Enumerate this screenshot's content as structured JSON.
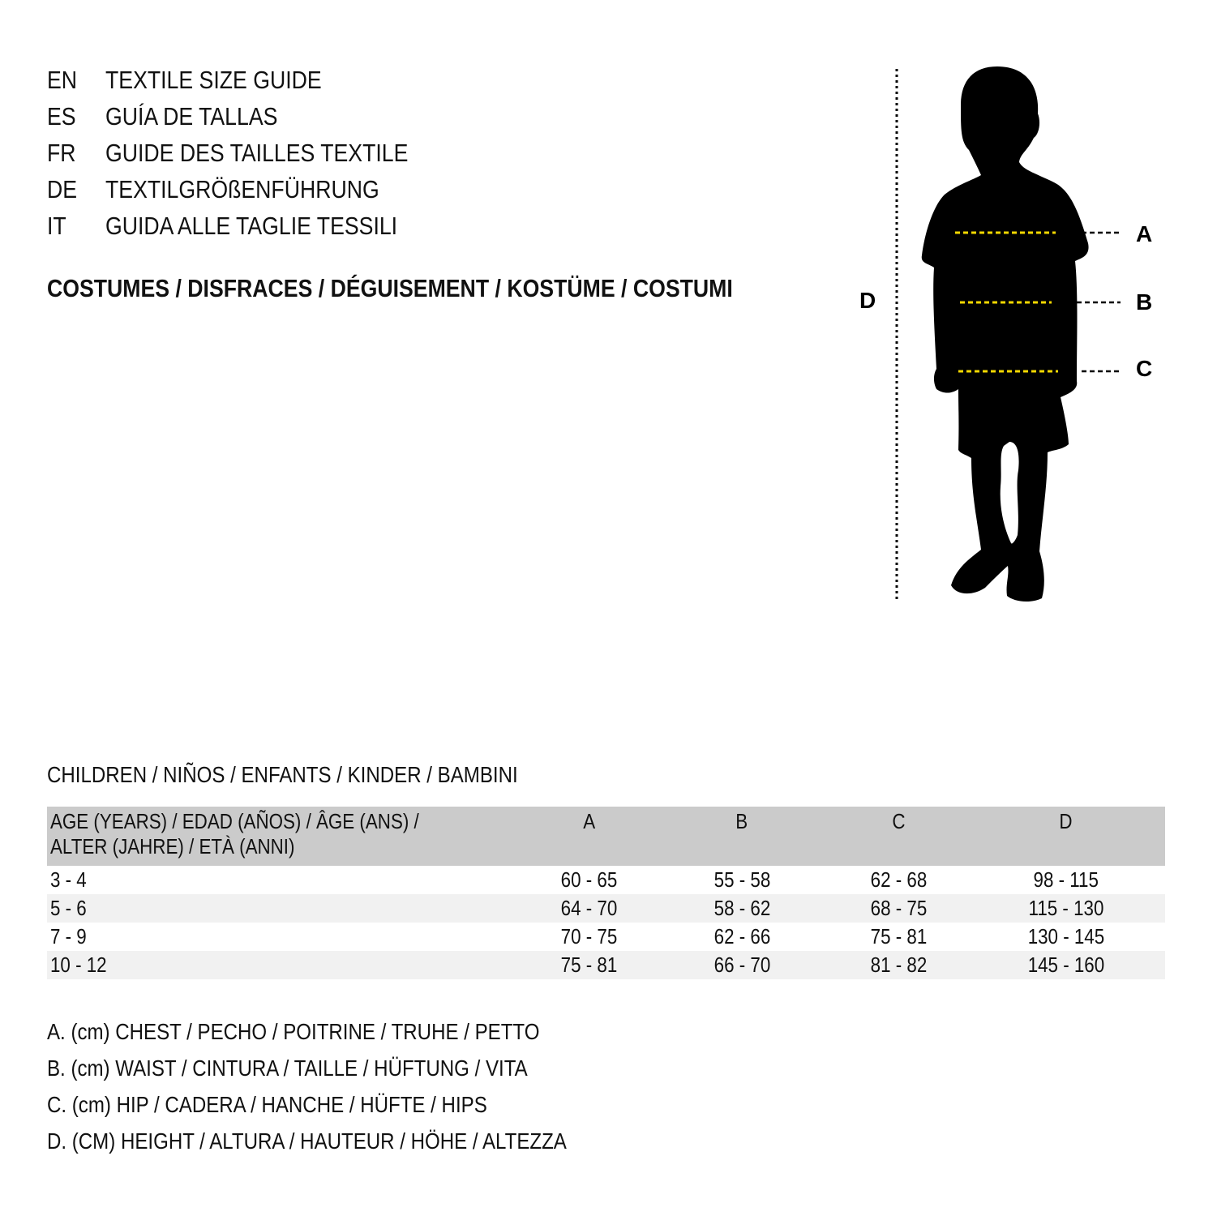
{
  "languages": [
    {
      "code": "EN",
      "title": "TEXTILE SIZE GUIDE"
    },
    {
      "code": "ES",
      "title": "GUÍA DE TALLAS"
    },
    {
      "code": "FR",
      "title": "GUIDE DES TAILLES TEXTILE"
    },
    {
      "code": "DE",
      "title": "TEXTILGRÖßENFÜHRUNG"
    },
    {
      "code": "IT",
      "title": "GUIDA ALLE TAGLIE TESSILI"
    }
  ],
  "heading": "COSTUMES / DISFRACES / DÉGUISEMENT / KOSTÜME / COSTUMI",
  "figure": {
    "labels": {
      "a": "A",
      "b": "B",
      "c": "C",
      "d": "D"
    },
    "measure_line_color": "#f5d800",
    "silhouette_color": "#000000"
  },
  "section": "CHILDREN / NIÑOS / ENFANTS / KINDER / BAMBINI",
  "table": {
    "header": {
      "age_line1": "AGE (YEARS) / EDAD (AÑOS) / ÂGE (ANS) /",
      "age_line2": "ALTER (JAHRE) / ETÀ (ANNI)",
      "a": "A",
      "b": "B",
      "c": "C",
      "d": "D"
    },
    "rows": [
      {
        "age": "3 - 4",
        "a": "60 - 65",
        "b": "55 - 58",
        "c": "62 - 68",
        "d": "98 - 115"
      },
      {
        "age": "5 - 6",
        "a": "64 - 70",
        "b": "58 - 62",
        "c": "68 - 75",
        "d": "115 - 130"
      },
      {
        "age": "7 - 9",
        "a": "70 - 75",
        "b": "62 - 66",
        "c": "75 - 81",
        "d": "130 - 145"
      },
      {
        "age": "10 - 12",
        "a": "75 - 81",
        "b": "66 - 70",
        "c": "81 - 82",
        "d": "145 - 160"
      }
    ]
  },
  "legend": [
    "A. (cm) CHEST / PECHO / POITRINE / TRUHE / PETTO",
    "B. (cm) WAIST / CINTURA / TAILLE / HÜFTUNG / VITA",
    "C. (cm) HIP / CADERA / HANCHE / HÜFTE / HIPS",
    "D. (CM) HEIGHT / ALTURA / HAUTEUR / HÖHE / ALTEZZA"
  ]
}
